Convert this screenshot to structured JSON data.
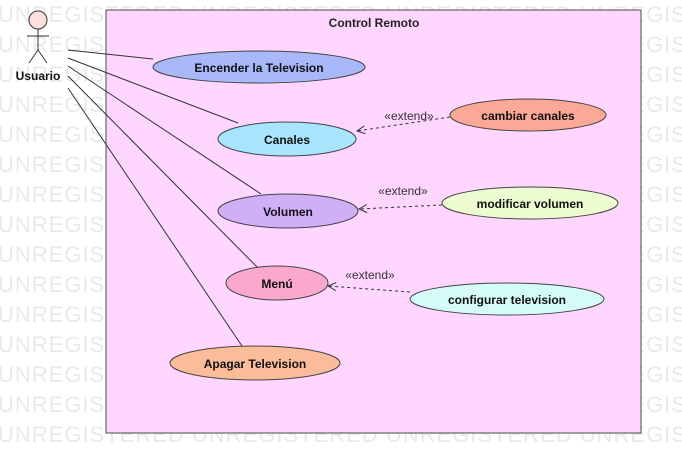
{
  "watermark": "UNREGISTERED UNREGISTERED UNREGISTERED UNREGISTERED UNREGISTERED",
  "system": {
    "title": "Control Remoto",
    "fill": "#ffd6ff"
  },
  "actor": {
    "name": "Usuario",
    "head_fill": "#fde0e0"
  },
  "use_cases": [
    {
      "id": "encender",
      "label": "Encender la Television",
      "fill": "#a8b8f8"
    },
    {
      "id": "canales",
      "label": "Canales",
      "fill": "#a8e4fb"
    },
    {
      "id": "volumen",
      "label": "Volumen",
      "fill": "#d0aef8"
    },
    {
      "id": "menu",
      "label": "Menú",
      "fill": "#fba8cf"
    },
    {
      "id": "apagar",
      "label": "Apagar Television",
      "fill": "#fbbc9a"
    },
    {
      "id": "cambiar",
      "label": "cambiar canales",
      "fill": "#fba896"
    },
    {
      "id": "modificar",
      "label": "modificar volumen",
      "fill": "#ecfcd0"
    },
    {
      "id": "configurar",
      "label": "configurar television",
      "fill": "#d4fbf8"
    }
  ],
  "extends": [
    {
      "label": "«extend»",
      "from": "cambiar",
      "to": "canales"
    },
    {
      "label": "«extend»",
      "from": "modificar",
      "to": "volumen"
    },
    {
      "label": "«extend»",
      "from": "configurar",
      "to": "menu"
    }
  ]
}
